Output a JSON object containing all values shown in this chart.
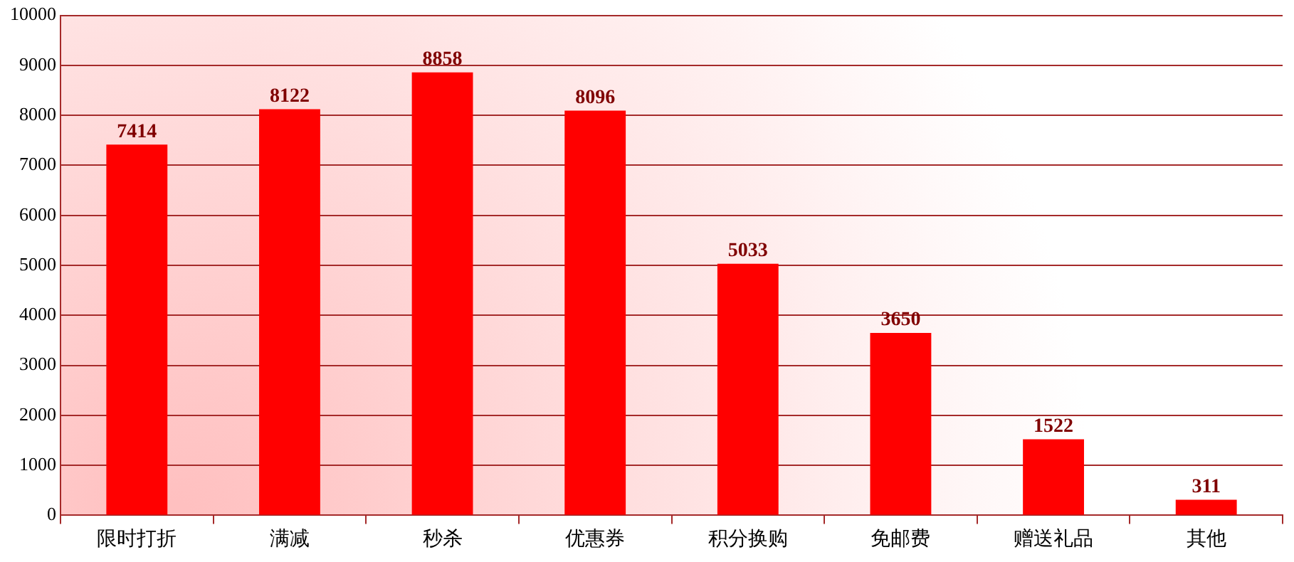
{
  "chart_data": {
    "type": "bar",
    "categories": [
      "限时打折",
      "满减",
      "秒杀",
      "优惠券",
      "积分换购",
      "免邮费",
      "赠送礼品",
      "其他"
    ],
    "values": [
      7414,
      8122,
      8858,
      8096,
      5033,
      3650,
      1522,
      311
    ],
    "color": "#ff0000",
    "ylim": [
      0,
      10000
    ],
    "yticks": [
      0,
      1000,
      2000,
      3000,
      4000,
      5000,
      6000,
      7000,
      8000,
      9000,
      10000
    ],
    "grid": "y",
    "data_labels": true
  }
}
